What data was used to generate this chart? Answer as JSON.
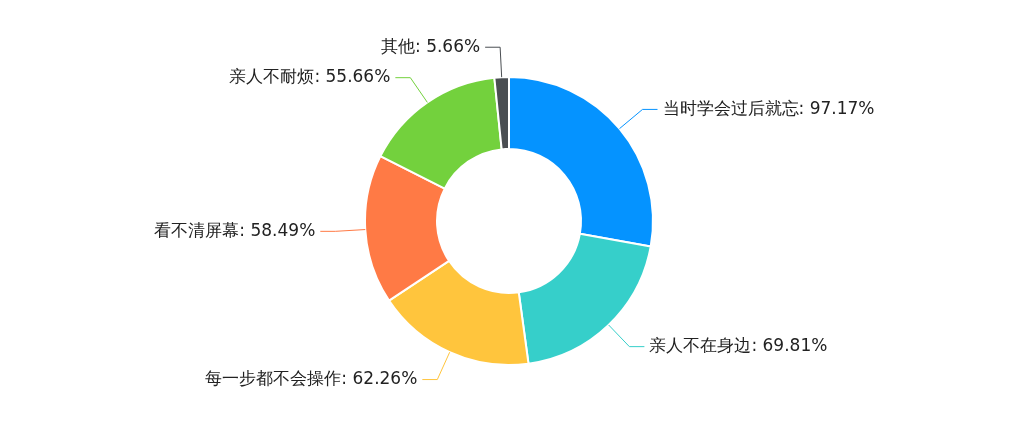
{
  "chart_data": {
    "type": "donut",
    "categories": [
      "当时学会过后就忘",
      "亲人不在身边",
      "每一步都不会操作",
      "看不清屏幕",
      "亲人不耐烦",
      "其他"
    ],
    "values": [
      97.17,
      69.81,
      62.26,
      58.49,
      55.66,
      5.66
    ],
    "value_labels": [
      "97.17%",
      "69.81%",
      "62.26%",
      "58.49%",
      "55.66%",
      "5.66%"
    ],
    "colors": [
      "#0593ff",
      "#36cfca",
      "#ffc53d",
      "#ff7a45",
      "#73d13d",
      "#4a4e52"
    ]
  }
}
